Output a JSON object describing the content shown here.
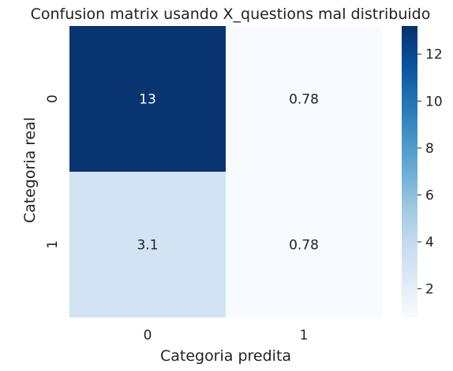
{
  "chart_data": {
    "type": "heatmap",
    "title": "Confusion matrix usando X_questions mal distribuido",
    "xlabel": "Categoria predita",
    "ylabel": "Categoria real",
    "x_categories": [
      "0",
      "1"
    ],
    "y_categories": [
      "0",
      "1"
    ],
    "values": [
      [
        13,
        0.78
      ],
      [
        3.1,
        0.78
      ]
    ],
    "annotations": [
      [
        "13",
        "0.78"
      ],
      [
        "3.1",
        "0.78"
      ]
    ],
    "colormap": "Blues",
    "colorbar": {
      "vmin": 0.78,
      "vmax": 13.2,
      "ticks": [
        2,
        4,
        6,
        8,
        10,
        12
      ],
      "tick_labels": [
        "2",
        "4",
        "6",
        "8",
        "10",
        "12"
      ]
    },
    "colors": {
      "low": "#f7fbff",
      "high": "#08306b"
    },
    "grid": false
  }
}
